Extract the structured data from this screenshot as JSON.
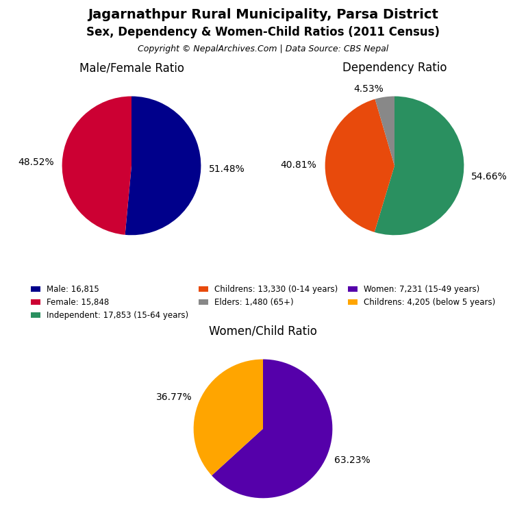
{
  "title": "Jagarnathpur Rural Municipality, Parsa District",
  "subtitle": "Sex, Dependency & Women-Child Ratios (2011 Census)",
  "annotations": [
    "Copyright © NepalArchives.Com | Data Source: CBS Nepal"
  ],
  "legend": "center",
  "chart_data": [
    {
      "type": "pie",
      "title": "Male/Female Ratio",
      "categories": [
        "Male: 16,815",
        "Female: 15,848"
      ],
      "values": [
        51.48,
        48.52
      ],
      "value_labels": [
        "51.48%",
        "48.52%"
      ],
      "colors": [
        "#00008B",
        "#CC0033"
      ],
      "data_labels": true
    },
    {
      "type": "pie",
      "title": "Dependency Ratio",
      "categories": [
        "Independent: 17,853 (15-64 years)",
        "Childrens: 13,330 (0-14 years)",
        "Elders: 1,480 (65+)"
      ],
      "values": [
        54.66,
        40.81,
        4.53
      ],
      "value_labels": [
        "54.66%",
        "40.81%",
        "4.53%"
      ],
      "colors": [
        "#2A9060",
        "#E84A0C",
        "#888888"
      ],
      "data_labels": true
    },
    {
      "type": "pie",
      "title": "Women/Child Ratio",
      "categories": [
        "Women: 7,231 (15-49 years)",
        "Childrens: 4,205 (below 5 years)"
      ],
      "values": [
        63.23,
        36.77
      ],
      "value_labels": [
        "63.23%",
        "36.77%"
      ],
      "colors": [
        "#5500AA",
        "#FFA500"
      ],
      "data_labels": true
    }
  ]
}
